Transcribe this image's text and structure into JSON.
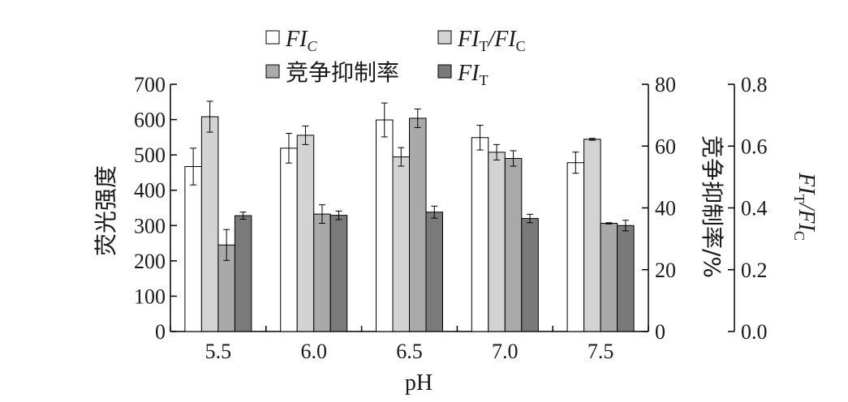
{
  "chart_data": {
    "type": "bar",
    "xlabel": "pH",
    "categories": [
      "5.5",
      "6.0",
      "6.5",
      "7.0",
      "7.5"
    ],
    "left_axis": {
      "label": "荧光强度",
      "ylim": [
        0,
        700
      ],
      "ticks": [
        "0",
        "100",
        "200",
        "300",
        "400",
        "500",
        "600",
        "700"
      ]
    },
    "right_axis_1": {
      "label": "竞争抑制率/%",
      "ylim": [
        0,
        80
      ],
      "ticks": [
        "0",
        "20",
        "40",
        "60",
        "80"
      ]
    },
    "right_axis_2": {
      "label_main": "FI",
      "label_sub1": "T",
      "label_mid": "/FI",
      "label_sub2": "C",
      "ylim": [
        0,
        0.8
      ],
      "ticks": [
        "0.0",
        "0.2",
        "0.4",
        "0.6",
        "0.8"
      ]
    },
    "series": [
      {
        "name": "FI",
        "name_sub": "C",
        "axis": "left",
        "color": "#ffffff",
        "values": [
          467,
          519,
          599,
          549,
          478
        ],
        "errors": [
          52,
          42,
          48,
          35,
          30
        ]
      },
      {
        "name": "FI",
        "name_sub": "T",
        "name_rest": "/FI",
        "name_sub2": "C",
        "axis": "right2",
        "color": "#d3d3d3",
        "values": [
          0.695,
          0.635,
          0.565,
          0.58,
          0.622
        ],
        "errors": [
          0.05,
          0.03,
          0.03,
          0.025,
          0.003
        ]
      },
      {
        "name": "竞争抑制率",
        "axis": "right1",
        "color": "#a9a9a9",
        "values": [
          28,
          38,
          69,
          56,
          35
        ],
        "errors": [
          5,
          3,
          3,
          2.5,
          0.2
        ]
      },
      {
        "name": "FI",
        "name_sub": "T",
        "axis": "left",
        "color": "#7a7a7a",
        "values": [
          328,
          329,
          338,
          320,
          300
        ],
        "errors": [
          10,
          12,
          17,
          12,
          15
        ]
      }
    ],
    "legend_placement": "top",
    "grid": false
  }
}
